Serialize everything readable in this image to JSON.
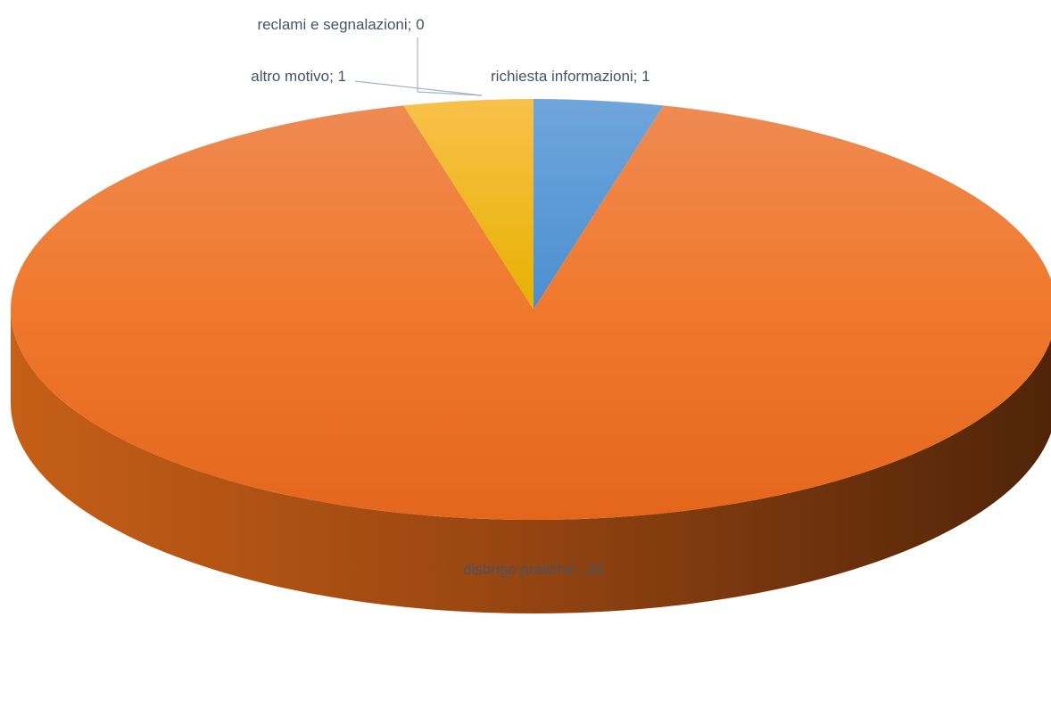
{
  "chart_data": {
    "type": "pie",
    "style": "3d",
    "title": "",
    "legend": "none",
    "slices": [
      {
        "label": "richiesta informazioni",
        "value": 1,
        "color": "#5b9bd5",
        "data_label": "richiesta informazioni; 1"
      },
      {
        "label": "disbrigo pratiche ",
        "value": 23,
        "color": "#ed7d31",
        "data_label": "disbrigo pratiche ; 23"
      },
      {
        "label": "reclami e segnalazioni",
        "value": 0,
        "color": "#a5a5a5",
        "data_label": "reclami e segnalazioni; 0"
      },
      {
        "label": "altro motivo",
        "value": 1,
        "color": "#ffc000",
        "data_label": "altro motivo; 1"
      }
    ]
  }
}
